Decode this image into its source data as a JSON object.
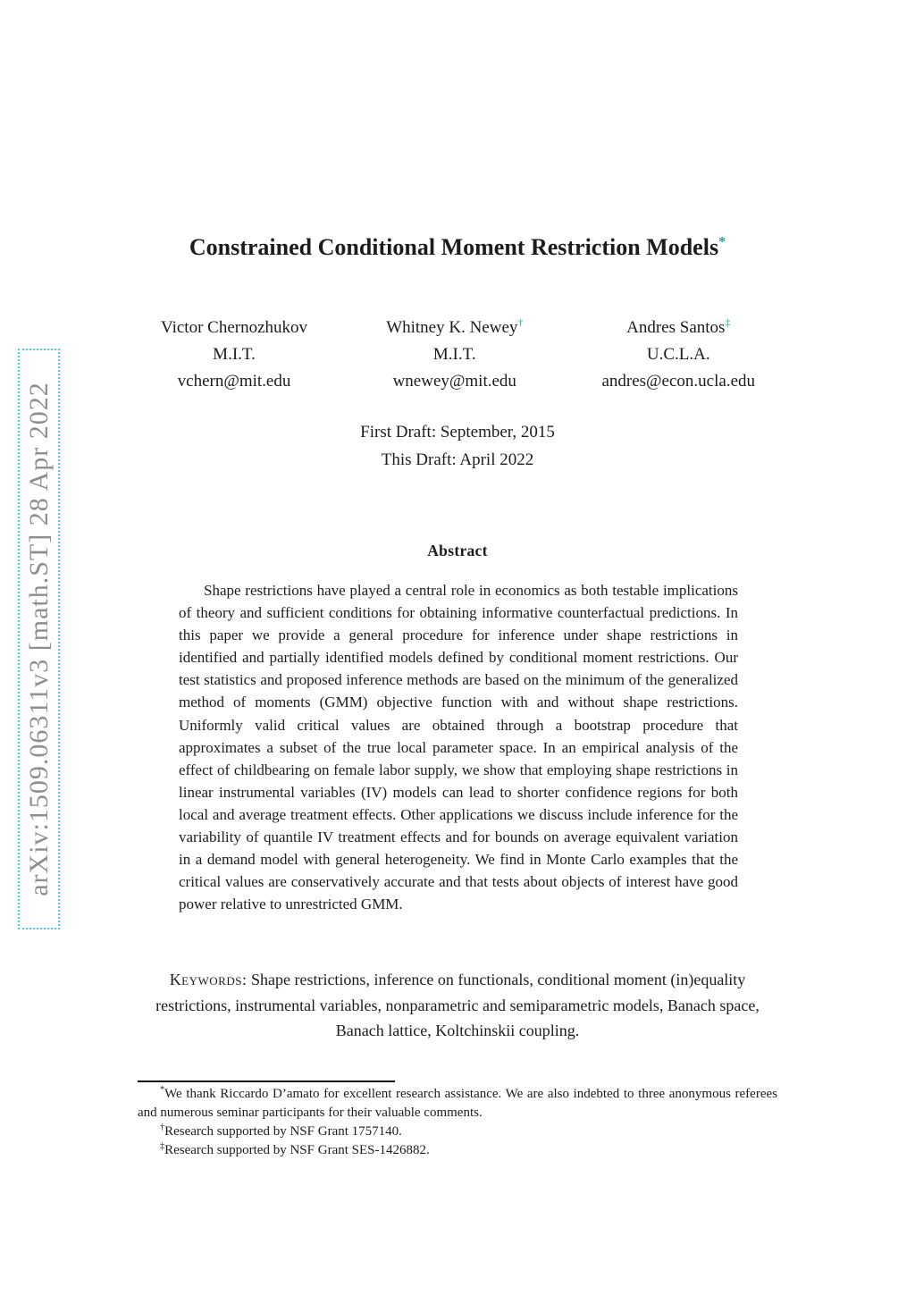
{
  "arxiv_sidebar": {
    "watermark": "arXiv:1509.06311v3 [math.ST] 28 Apr 2022"
  },
  "header": {
    "title": "Constrained Conditional Moment Restriction Models",
    "title_mark": "*"
  },
  "authors": [
    {
      "name": "Victor Chernozhukov",
      "mark": "",
      "affiliation": "M.I.T.",
      "email": "vchern@mit.edu"
    },
    {
      "name": "Whitney K. Newey",
      "mark": "†",
      "affiliation": "M.I.T.",
      "email": "wnewey@mit.edu"
    },
    {
      "name": "Andres Santos",
      "mark": "‡",
      "affiliation": "U.C.L.A.",
      "email": "andres@econ.ucla.edu"
    }
  ],
  "drafts": {
    "first_draft": "First Draft: September, 2015",
    "this_draft": "This Draft: April 2022"
  },
  "abstract": {
    "heading": "Abstract",
    "body": "Shape restrictions have played a central role in economics as both testable implications of theory and sufficient conditions for obtaining informative counterfactual predictions. In this paper we provide a general procedure for inference under shape restrictions in identified and partially identified models defined by conditional moment restrictions. Our test statistics and proposed inference methods are based on the minimum of the generalized method of moments (GMM) objective function with and without shape restrictions. Uniformly valid critical values are obtained through a bootstrap procedure that approximates a subset of the true local parameter space. In an empirical analysis of the effect of childbearing on female labor supply, we show that employing shape restrictions in linear instrumental variables (IV) models can lead to shorter confidence regions for both local and average treatment effects. Other applications we discuss include inference for the variability of quantile IV treatment effects and for bounds on average equivalent variation in a demand model with general heterogeneity. We find in Monte Carlo examples that the critical values are conservatively accurate and that tests about objects of interest have good power relative to unrestricted GMM."
  },
  "keywords": {
    "label": "Keywords:",
    "text": " Shape restrictions, inference on functionals, conditional moment (in)equality restrictions, instrumental variables, nonparametric and semiparametric models, Banach space, Banach lattice, Koltchinskii coupling."
  },
  "footnotes": [
    {
      "mark": "*",
      "text": "We thank Riccardo D’amato for excellent research assistance. We are also indebted to three anonymous referees and numerous seminar participants for their valuable comments."
    },
    {
      "mark": "†",
      "text": "Research supported by NSF Grant 1757140."
    },
    {
      "mark": "‡",
      "text": "Research supported by NSF Grant SES-1426882."
    }
  ],
  "colors": {
    "accent_teal": "#2f9c8e",
    "watermark_gray": "#8e8e8e",
    "dotted_cyan": "#35dcdc",
    "text": "#1c1c1c"
  }
}
